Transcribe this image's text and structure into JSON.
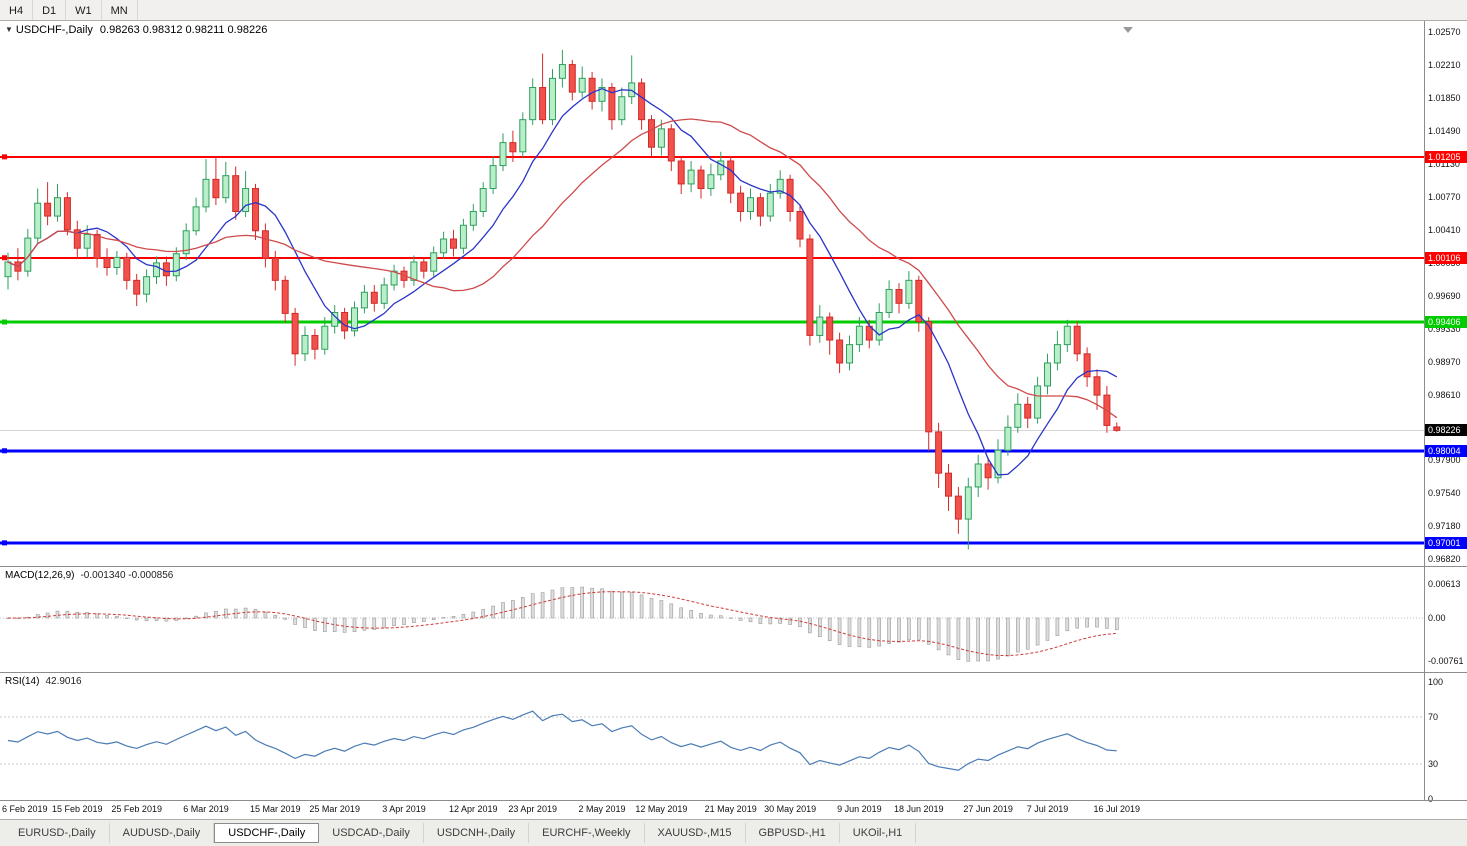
{
  "toolbar": {
    "timeframes": [
      "H4",
      "D1",
      "W1",
      "MN"
    ]
  },
  "chart_header": {
    "collapse_icon": "▼",
    "title": "USDCHF-,Daily",
    "ohlc": "0.98263 0.98312 0.98211 0.98226"
  },
  "indicators": {
    "macd": {
      "label": "MACD(12,26,9)",
      "values": "-0.001340 -0.000856",
      "scale": [
        {
          "label": "0.00613",
          "value": 0.00613
        },
        {
          "label": "0.00",
          "value": 0
        },
        {
          "label": "-0.00761",
          "value": -0.00761
        }
      ]
    },
    "rsi": {
      "label": "RSI(14)",
      "value": "42.9016",
      "scale": [
        {
          "label": "100",
          "value": 100
        },
        {
          "label": "70",
          "value": 70
        },
        {
          "label": "30",
          "value": 30
        },
        {
          "label": "0",
          "value": 0
        }
      ]
    }
  },
  "price_scale": {
    "current_price": "0.98226",
    "ticks": [
      "1.02570",
      "1.02210",
      "1.01850",
      "1.01490",
      "1.01130",
      "1.00770",
      "1.00410",
      "1.00050",
      "0.99690",
      "0.99330",
      "0.98970",
      "0.98610",
      "0.97900",
      "0.97540",
      "0.97180",
      "0.96820"
    ]
  },
  "tabs": {
    "items": [
      {
        "label": "EURUSD-,Daily",
        "active": false
      },
      {
        "label": "AUDUSD-,Daily",
        "active": false
      },
      {
        "label": "USDCHF-,Daily",
        "active": true
      },
      {
        "label": "USDCAD-,Daily",
        "active": false
      },
      {
        "label": "USDCNH-,Daily",
        "active": false
      },
      {
        "label": "EURCHF-,Weekly",
        "active": false
      },
      {
        "label": "XAUUSD-,M15",
        "active": false
      },
      {
        "label": "GBPUSD-,H1",
        "active": false
      },
      {
        "label": "UKOil-,H1",
        "active": false
      }
    ]
  },
  "chart_data": {
    "type": "candlestick",
    "symbol": "USDCHF-",
    "timeframe": "Daily",
    "title": "USDCHF-,Daily",
    "last_ohlc": {
      "open": 0.98263,
      "high": 0.98312,
      "low": 0.98211,
      "close": 0.98226
    },
    "current_price": 0.98226,
    "y_axis": {
      "top": 1.0263,
      "bottom": 0.9676
    },
    "colors": {
      "up_fill": "#b9efc8",
      "up_stroke": "#2f9e5f",
      "down_fill": "#f1514b",
      "down_stroke": "#d42a2a",
      "current_line": "#d6d6d6"
    },
    "hlines": [
      {
        "price": 1.01205,
        "label": "1.01205",
        "color": "#ff0000",
        "width": 2
      },
      {
        "price": 1.00106,
        "label": "1.00106",
        "color": "#ff0000",
        "width": 2
      },
      {
        "price": 0.99406,
        "label": "0.99406",
        "color": "#00cc00",
        "width": 3
      },
      {
        "price": 0.98004,
        "label": "0.98004",
        "color": "#0000ff",
        "width": 3
      },
      {
        "price": 0.97001,
        "label": "0.97001",
        "color": "#0000ff",
        "width": 3
      }
    ],
    "overlays": [
      {
        "name": "ma-fast",
        "type": "sma",
        "period": 8,
        "color": "#2a35c8"
      },
      {
        "name": "ma-slow",
        "type": "sma",
        "period": 21,
        "color": "#cf4a4a"
      }
    ],
    "panels": [
      {
        "name": "macd",
        "type": "macd",
        "params": [
          12,
          26,
          9
        ],
        "histogram_color": "#dedede",
        "signal_color": "#cf3a3a",
        "range": [
          -0.00761,
          0.00613
        ]
      },
      {
        "name": "rsi",
        "type": "rsi",
        "params": [
          14
        ],
        "color": "#4b7bb5",
        "range": [
          0,
          100
        ],
        "levels": [
          70,
          30
        ]
      }
    ],
    "x_axis": {
      "labels": [
        {
          "index": 0,
          "text": "6 Feb 2019"
        },
        {
          "index": 7,
          "text": "15 Feb 2019"
        },
        {
          "index": 13,
          "text": "25 Feb 2019"
        },
        {
          "index": 20,
          "text": "6 Mar 2019"
        },
        {
          "index": 27,
          "text": "15 Mar 2019"
        },
        {
          "index": 33,
          "text": "25 Mar 2019"
        },
        {
          "index": 40,
          "text": "3 Apr 2019"
        },
        {
          "index": 47,
          "text": "12 Apr 2019"
        },
        {
          "index": 53,
          "text": "23 Apr 2019"
        },
        {
          "index": 60,
          "text": "2 May 2019"
        },
        {
          "index": 66,
          "text": "12 May 2019"
        },
        {
          "index": 73,
          "text": "21 May 2019"
        },
        {
          "index": 79,
          "text": "30 May 2019"
        },
        {
          "index": 86,
          "text": "9 Jun 2019"
        },
        {
          "index": 92,
          "text": "18 Jun 2019"
        },
        {
          "index": 99,
          "text": "27 Jun 2019"
        },
        {
          "index": 105,
          "text": "7 Jul 2019"
        },
        {
          "index": 112,
          "text": "16 Jul 2019"
        }
      ]
    },
    "candles": [
      [
        0.999,
        1.0016,
        0.9976,
        1.0006
      ],
      [
        1.0006,
        1.0021,
        0.9986,
        0.9996
      ],
      [
        0.9996,
        1.0042,
        0.999,
        1.0032
      ],
      [
        1.0032,
        1.0086,
        1.0026,
        1.007
      ],
      [
        1.007,
        1.0093,
        1.0046,
        1.0056
      ],
      [
        1.0056,
        1.0091,
        1.005,
        1.0076
      ],
      [
        1.0076,
        1.0082,
        1.0035,
        1.0041
      ],
      [
        1.0041,
        1.0051,
        1.0011,
        1.0021
      ],
      [
        1.0021,
        1.0046,
        1.0011,
        1.0036
      ],
      [
        1.0036,
        1.0041,
        1.0,
        1.001
      ],
      [
        1.001,
        1.0021,
        0.9991,
        1.0
      ],
      [
        1.0,
        1.0018,
        0.9992,
        1.0011
      ],
      [
        1.0011,
        1.0016,
        0.9976,
        0.9986
      ],
      [
        0.9986,
        0.9993,
        0.9958,
        0.9971
      ],
      [
        0.9971,
        0.9998,
        0.9962,
        0.999
      ],
      [
        0.999,
        1.0012,
        0.9982,
        1.0005
      ],
      [
        1.0005,
        1.0012,
        0.998,
        0.9991
      ],
      [
        0.9991,
        1.0022,
        0.9985,
        1.0015
      ],
      [
        1.0015,
        1.0048,
        1.0008,
        1.004
      ],
      [
        1.004,
        1.0076,
        1.0035,
        1.0066
      ],
      [
        1.0066,
        1.0118,
        1.006,
        1.0096
      ],
      [
        1.0096,
        1.0121,
        1.0068,
        1.0076
      ],
      [
        1.0076,
        1.0115,
        1.007,
        1.01
      ],
      [
        1.01,
        1.011,
        1.0052,
        1.0061
      ],
      [
        1.0061,
        1.0105,
        1.0055,
        1.0086
      ],
      [
        1.0086,
        1.0091,
        1.003,
        1.004
      ],
      [
        1.004,
        1.0048,
        1.0,
        1.001
      ],
      [
        1.001,
        1.0018,
        0.9975,
        0.9986
      ],
      [
        0.9986,
        0.9991,
        0.994,
        0.995
      ],
      [
        0.995,
        0.9956,
        0.9893,
        0.9906
      ],
      [
        0.9906,
        0.9936,
        0.9898,
        0.9926
      ],
      [
        0.9926,
        0.9933,
        0.99,
        0.9911
      ],
      [
        0.9911,
        0.9946,
        0.9905,
        0.9936
      ],
      [
        0.9936,
        0.9959,
        0.9928,
        0.9951
      ],
      [
        0.9951,
        0.9956,
        0.9922,
        0.9931
      ],
      [
        0.9931,
        0.9963,
        0.9925,
        0.9956
      ],
      [
        0.9956,
        0.9981,
        0.995,
        0.9973
      ],
      [
        0.9973,
        0.9981,
        0.9952,
        0.9961
      ],
      [
        0.9961,
        0.9989,
        0.9955,
        0.9981
      ],
      [
        0.9981,
        1.0003,
        0.9975,
        0.9996
      ],
      [
        0.9996,
        1.0001,
        0.9978,
        0.9986
      ],
      [
        0.9986,
        1.0013,
        0.998,
        1.0006
      ],
      [
        1.0006,
        1.0011,
        0.9988,
        0.9996
      ],
      [
        0.9996,
        1.0023,
        0.999,
        1.0016
      ],
      [
        1.0016,
        1.0039,
        1.001,
        1.0031
      ],
      [
        1.0031,
        1.0041,
        1.0012,
        1.0021
      ],
      [
        1.0021,
        1.0053,
        1.0015,
        1.0046
      ],
      [
        1.0046,
        1.0069,
        1.004,
        1.0061
      ],
      [
        1.0061,
        1.0093,
        1.0055,
        1.0086
      ],
      [
        1.0086,
        1.0121,
        1.008,
        1.0111
      ],
      [
        1.0111,
        1.0146,
        1.0105,
        1.0136
      ],
      [
        1.0136,
        1.0149,
        1.0115,
        1.0126
      ],
      [
        1.0126,
        1.0169,
        1.012,
        1.0161
      ],
      [
        1.0161,
        1.0206,
        1.0155,
        1.0196
      ],
      [
        1.0196,
        1.0233,
        1.0156,
        1.0161
      ],
      [
        1.0161,
        1.0216,
        1.0155,
        1.0206
      ],
      [
        1.0206,
        1.0237,
        1.0196,
        1.0221
      ],
      [
        1.0221,
        1.0226,
        1.0182,
        1.0191
      ],
      [
        1.0191,
        1.0219,
        1.0185,
        1.0206
      ],
      [
        1.0206,
        1.0213,
        1.0172,
        1.0181
      ],
      [
        1.0181,
        1.0206,
        1.017,
        1.0196
      ],
      [
        1.0196,
        1.0201,
        1.015,
        1.0161
      ],
      [
        1.0161,
        1.0196,
        1.0155,
        1.0186
      ],
      [
        1.0186,
        1.0231,
        1.0178,
        1.0201
      ],
      [
        1.0201,
        1.0206,
        1.015,
        1.0161
      ],
      [
        1.0161,
        1.0166,
        1.012,
        1.0131
      ],
      [
        1.0131,
        1.0161,
        1.0122,
        1.0151
      ],
      [
        1.0151,
        1.0156,
        1.0105,
        1.0116
      ],
      [
        1.0116,
        1.0121,
        1.008,
        1.0091
      ],
      [
        1.0091,
        1.0116,
        1.0082,
        1.0106
      ],
      [
        1.0106,
        1.0111,
        1.0075,
        1.0086
      ],
      [
        1.0086,
        1.0113,
        1.0078,
        1.0101
      ],
      [
        1.0101,
        1.0126,
        1.0095,
        1.0116
      ],
      [
        1.0116,
        1.0121,
        1.007,
        1.0081
      ],
      [
        1.0081,
        1.0089,
        1.005,
        1.0061
      ],
      [
        1.0061,
        1.0086,
        1.0052,
        1.0076
      ],
      [
        1.0076,
        1.0081,
        1.0045,
        1.0056
      ],
      [
        1.0056,
        1.0091,
        1.005,
        1.0081
      ],
      [
        1.0081,
        1.0106,
        1.0075,
        1.0096
      ],
      [
        1.0096,
        1.0101,
        1.005,
        1.0061
      ],
      [
        1.0061,
        1.0068,
        1.0022,
        1.0031
      ],
      [
        1.0031,
        1.0036,
        0.9915,
        0.9926
      ],
      [
        0.9926,
        0.9959,
        0.9918,
        0.9946
      ],
      [
        0.9946,
        0.9951,
        0.9905,
        0.9921
      ],
      [
        0.9921,
        0.9929,
        0.9885,
        0.9896
      ],
      [
        0.9896,
        0.9926,
        0.9888,
        0.9916
      ],
      [
        0.9916,
        0.9946,
        0.9908,
        0.9936
      ],
      [
        0.9936,
        0.9943,
        0.9912,
        0.9921
      ],
      [
        0.9921,
        0.9961,
        0.9915,
        0.9951
      ],
      [
        0.9951,
        0.9986,
        0.9945,
        0.9976
      ],
      [
        0.9976,
        0.9983,
        0.995,
        0.9961
      ],
      [
        0.9961,
        0.9996,
        0.9955,
        0.9986
      ],
      [
        0.9986,
        0.9991,
        0.993,
        0.9941
      ],
      [
        0.9941,
        0.9946,
        0.98,
        0.9821
      ],
      [
        0.9821,
        0.9831,
        0.976,
        0.9776
      ],
      [
        0.9776,
        0.9786,
        0.9735,
        0.9751
      ],
      [
        0.9751,
        0.9761,
        0.971,
        0.9726
      ],
      [
        0.9726,
        0.9771,
        0.9693,
        0.9761
      ],
      [
        0.9761,
        0.9796,
        0.975,
        0.9786
      ],
      [
        0.9786,
        0.9793,
        0.9758,
        0.9771
      ],
      [
        0.9771,
        0.9813,
        0.9765,
        0.9801
      ],
      [
        0.9801,
        0.9839,
        0.9795,
        0.9826
      ],
      [
        0.9826,
        0.9863,
        0.982,
        0.9851
      ],
      [
        0.9851,
        0.9859,
        0.9825,
        0.9836
      ],
      [
        0.9836,
        0.9881,
        0.983,
        0.9871
      ],
      [
        0.9871,
        0.9906,
        0.9862,
        0.9896
      ],
      [
        0.9896,
        0.9931,
        0.9888,
        0.9916
      ],
      [
        0.9916,
        0.9943,
        0.9908,
        0.9936
      ],
      [
        0.9936,
        0.9941,
        0.9898,
        0.9906
      ],
      [
        0.9906,
        0.9913,
        0.987,
        0.9881
      ],
      [
        0.9881,
        0.9889,
        0.9845,
        0.9861
      ],
      [
        0.9861,
        0.9871,
        0.982,
        0.9828
      ],
      [
        0.98263,
        0.98312,
        0.98211,
        0.98226
      ]
    ]
  }
}
